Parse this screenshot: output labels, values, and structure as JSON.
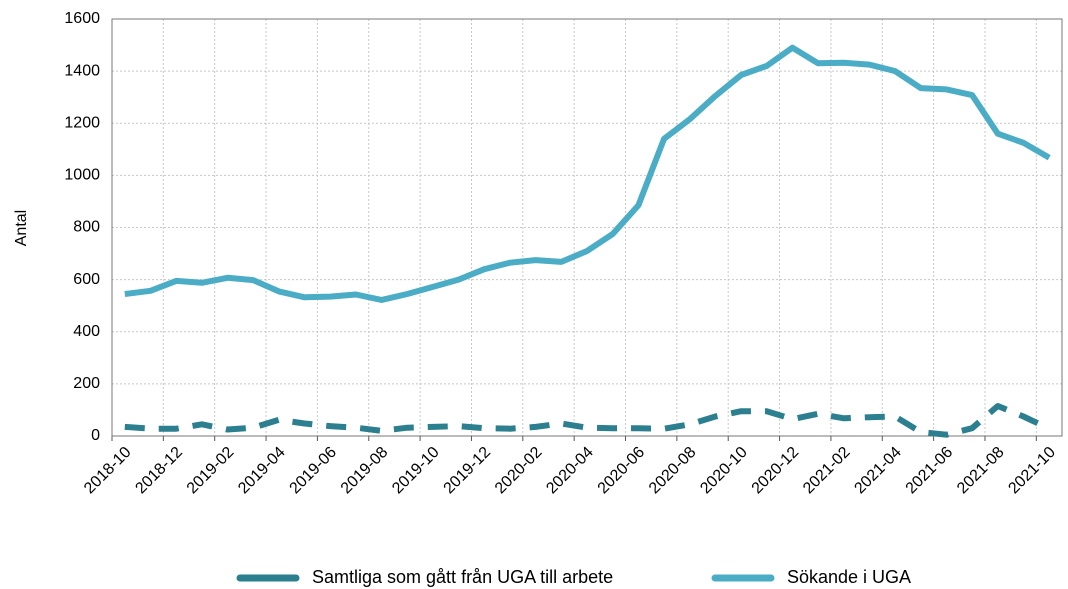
{
  "chart_data": {
    "type": "line",
    "y_label": "Antal",
    "categories": [
      "2018-10",
      null,
      "2018-12",
      null,
      "2019-02",
      null,
      "2019-04",
      null,
      "2019-06",
      null,
      "2019-08",
      null,
      "2019-10",
      null,
      "2019-12",
      null,
      "2020-02",
      null,
      "2020-04",
      null,
      "2020-06",
      null,
      "2020-08",
      null,
      "2020-10",
      null,
      "2020-12",
      null,
      "2021-02",
      null,
      "2021-04",
      null,
      "2021-06",
      null,
      "2021-08",
      null,
      "2021-10"
    ],
    "series": [
      {
        "name": "Samtliga som gått från UGA till arbete",
        "color": "#2b7f8e",
        "dashed": true,
        "values": [
          35,
          28,
          28,
          45,
          25,
          32,
          62,
          48,
          38,
          32,
          20,
          32,
          35,
          38,
          30,
          28,
          35,
          48,
          32,
          30,
          30,
          28,
          45,
          75,
          95,
          95,
          65,
          85,
          68,
          72,
          75,
          15,
          5,
          30,
          115,
          75,
          28
        ]
      },
      {
        "name": "Sökande i UGA",
        "color": "#4bacc6",
        "dashed": false,
        "values": [
          545,
          557,
          595,
          588,
          607,
          598,
          555,
          532,
          535,
          543,
          522,
          545,
          572,
          600,
          640,
          665,
          675,
          668,
          710,
          775,
          885,
          1140,
          1215,
          1305,
          1385,
          1420,
          1490,
          1430,
          1432,
          1425,
          1400,
          1335,
          1330,
          1308,
          1160,
          1125,
          1068
        ]
      }
    ],
    "ylim": [
      0,
      1600
    ],
    "yticks": [
      0,
      200,
      400,
      600,
      800,
      1000,
      1200,
      1400,
      1600
    ],
    "grid": true
  }
}
